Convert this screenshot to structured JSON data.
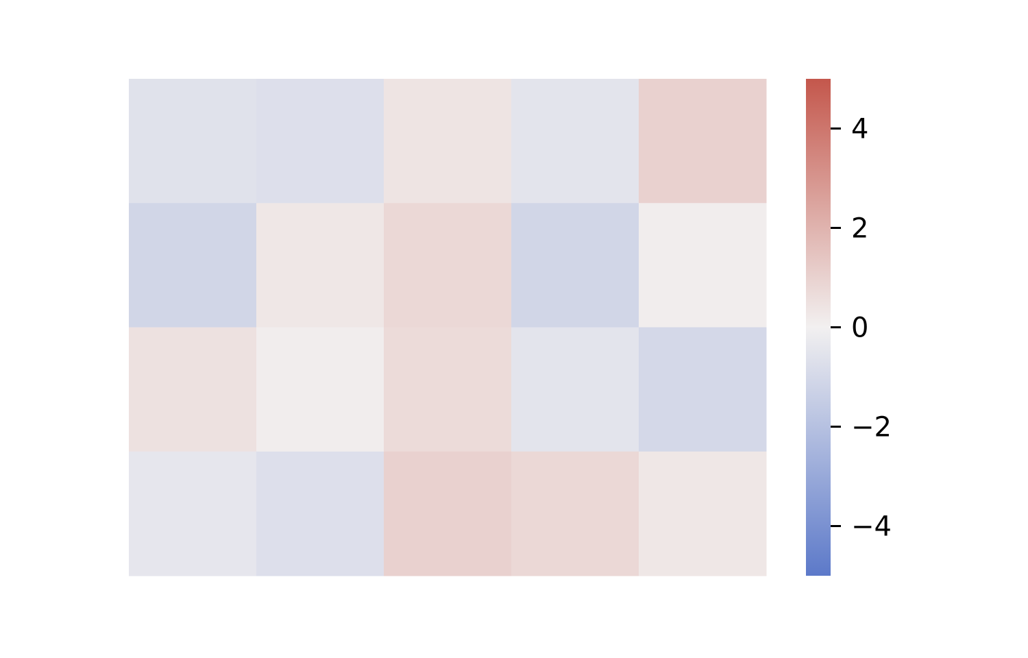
{
  "chart_data": {
    "type": "heatmap",
    "rows": 4,
    "cols": 5,
    "values": [
      [
        -0.6,
        -0.7,
        0.4,
        -0.5,
        1.0
      ],
      [
        -1.1,
        0.3,
        0.8,
        -1.1,
        0.1
      ],
      [
        0.5,
        0.1,
        0.7,
        -0.5,
        -1.0
      ],
      [
        -0.4,
        -0.7,
        1.0,
        0.8,
        0.3
      ]
    ],
    "colorbar": {
      "min": -5,
      "max": 5,
      "ticks": [
        4,
        2,
        0,
        -2,
        -4
      ],
      "tick_labels": [
        "4",
        "2",
        "0",
        "−2",
        "−4"
      ],
      "colors": {
        "low": "#5c79c9",
        "mid": "#f2f0f0",
        "high": "#c4574c"
      }
    }
  }
}
